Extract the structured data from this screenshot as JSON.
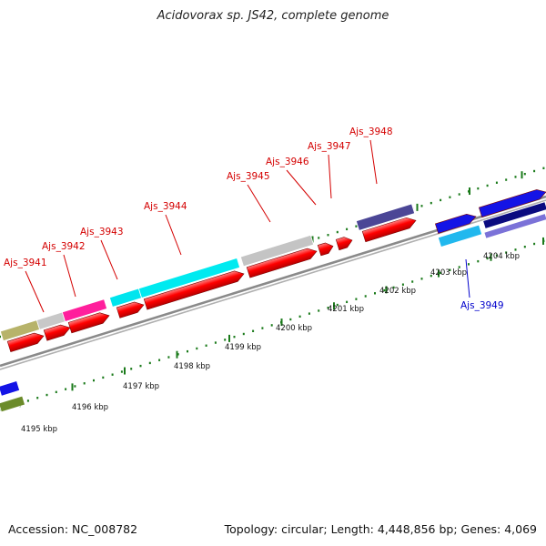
{
  "title": "Acidovorax sp. JS42, complete genome",
  "footer": {
    "accession": "Accession: NC_008782",
    "summary": "Topology: circular; Length: 4,448,856 bp; Genes: 4,069"
  },
  "colors": {
    "cds": "#ff0000",
    "label_red": "#d40000",
    "label_blue": "#0000cc",
    "backbone": "#8a8a8a",
    "ticks": "#1a7a1a"
  },
  "scale_labels": [
    "4195 kbp",
    "4196 kbp",
    "4197 kbp",
    "4198 kbp",
    "4199 kbp",
    "4200 kbp",
    "4201 kbp",
    "4202 kbp",
    "4203 kbp",
    "4204 kbp"
  ],
  "gene_labels": [
    {
      "name": "Ajs_3941",
      "color": "red"
    },
    {
      "name": "Ajs_3942",
      "color": "red"
    },
    {
      "name": "Ajs_3943",
      "color": "red"
    },
    {
      "name": "Ajs_3944",
      "color": "red"
    },
    {
      "name": "Ajs_3945",
      "color": "red"
    },
    {
      "name": "Ajs_3946",
      "color": "red"
    },
    {
      "name": "Ajs_3947",
      "color": "red"
    },
    {
      "name": "Ajs_3948",
      "color": "red"
    },
    {
      "name": "Ajs_3949",
      "color": "blue"
    }
  ]
}
